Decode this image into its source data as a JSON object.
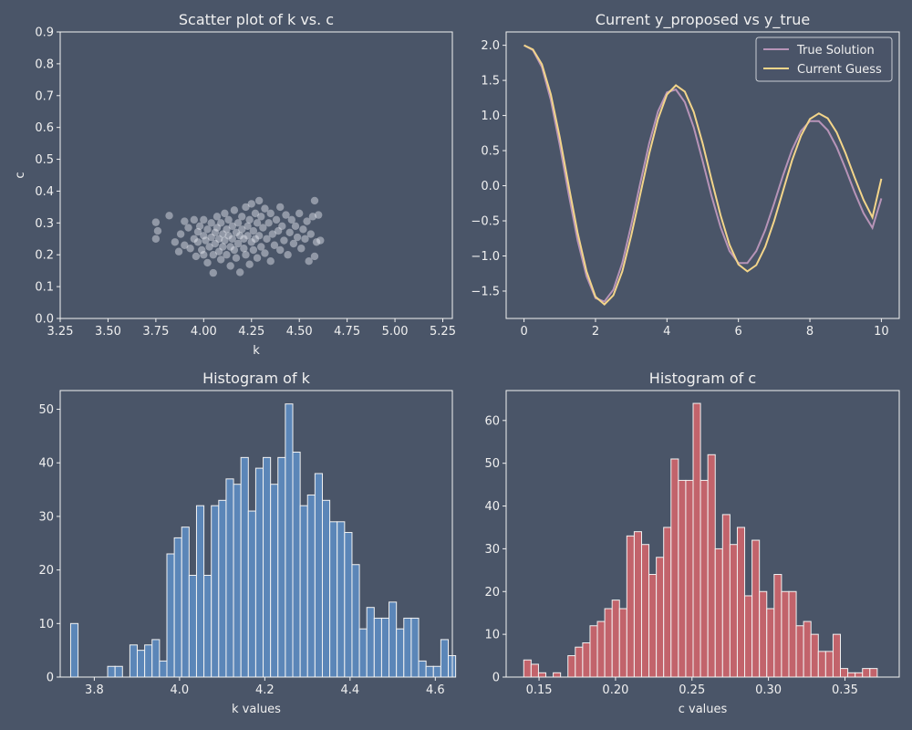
{
  "theme": {
    "background": "#4a5568",
    "text": "#f0f0f0",
    "scatter_color": "#e8ecf2",
    "line_true": "#b794b8",
    "line_guess": "#f3d58a",
    "hist_k": "#5b86b8",
    "hist_c": "#c2636b",
    "edge": "#f2f2f2"
  },
  "chart_data": [
    {
      "type": "scatter",
      "title": "Scatter plot of k vs. c",
      "xlabel": "k",
      "ylabel": "c",
      "xlim": [
        3.25,
        5.3
      ],
      "ylim": [
        0.0,
        0.9
      ],
      "xticks": [
        3.25,
        3.5,
        3.75,
        4.0,
        4.25,
        4.5,
        4.75,
        5.0,
        5.25
      ],
      "xtick_labels": [
        "3.25",
        "3.50",
        "3.75",
        "4.00",
        "4.25",
        "4.50",
        "4.75",
        "5.00",
        "5.25"
      ],
      "yticks": [
        0.0,
        0.1,
        0.2,
        0.3,
        0.4,
        0.5,
        0.6,
        0.7,
        0.8,
        0.9
      ],
      "ytick_labels": [
        "0.0",
        "0.1",
        "0.2",
        "0.3",
        "0.4",
        "0.5",
        "0.6",
        "0.7",
        "0.8",
        "0.9"
      ],
      "points": [
        [
          3.75,
          0.25
        ],
        [
          3.75,
          0.302
        ],
        [
          3.76,
          0.275
        ],
        [
          3.82,
          0.323
        ],
        [
          3.85,
          0.24
        ],
        [
          3.87,
          0.21
        ],
        [
          3.88,
          0.265
        ],
        [
          3.9,
          0.305
        ],
        [
          3.9,
          0.23
        ],
        [
          3.92,
          0.285
        ],
        [
          3.93,
          0.22
        ],
        [
          3.95,
          0.25
        ],
        [
          3.95,
          0.31
        ],
        [
          3.96,
          0.195
        ],
        [
          3.97,
          0.272
        ],
        [
          3.97,
          0.24
        ],
        [
          3.98,
          0.29
        ],
        [
          3.99,
          0.215
        ],
        [
          4.0,
          0.26
        ],
        [
          4.0,
          0.31
        ],
        [
          4.0,
          0.2
        ],
        [
          4.01,
          0.245
        ],
        [
          4.02,
          0.28
        ],
        [
          4.02,
          0.175
        ],
        [
          4.03,
          0.225
        ],
        [
          4.04,
          0.3
        ],
        [
          4.04,
          0.255
        ],
        [
          4.05,
          0.143
        ],
        [
          4.05,
          0.2
        ],
        [
          4.06,
          0.27
        ],
        [
          4.06,
          0.235
        ],
        [
          4.07,
          0.32
        ],
        [
          4.07,
          0.285
        ],
        [
          4.08,
          0.21
        ],
        [
          4.08,
          0.25
        ],
        [
          4.09,
          0.3
        ],
        [
          4.09,
          0.185
        ],
        [
          4.1,
          0.265
        ],
        [
          4.1,
          0.225
        ],
        [
          4.11,
          0.33
        ],
        [
          4.11,
          0.245
        ],
        [
          4.12,
          0.28
        ],
        [
          4.12,
          0.2
        ],
        [
          4.13,
          0.26
        ],
        [
          4.13,
          0.31
        ],
        [
          4.14,
          0.225
        ],
        [
          4.14,
          0.165
        ],
        [
          4.15,
          0.29
        ],
        [
          4.15,
          0.25
        ],
        [
          4.16,
          0.215
        ],
        [
          4.16,
          0.34
        ],
        [
          4.17,
          0.27
        ],
        [
          4.17,
          0.19
        ],
        [
          4.18,
          0.3
        ],
        [
          4.18,
          0.235
        ],
        [
          4.19,
          0.26
        ],
        [
          4.19,
          0.145
        ],
        [
          4.2,
          0.32
        ],
        [
          4.2,
          0.28
        ],
        [
          4.21,
          0.22
        ],
        [
          4.21,
          0.25
        ],
        [
          4.22,
          0.35
        ],
        [
          4.22,
          0.2
        ],
        [
          4.23,
          0.29
        ],
        [
          4.23,
          0.26
        ],
        [
          4.24,
          0.17
        ],
        [
          4.24,
          0.31
        ],
        [
          4.25,
          0.24
        ],
        [
          4.25,
          0.36
        ],
        [
          4.26,
          0.275
        ],
        [
          4.26,
          0.215
        ],
        [
          4.27,
          0.33
        ],
        [
          4.27,
          0.25
        ],
        [
          4.28,
          0.3
        ],
        [
          4.28,
          0.19
        ],
        [
          4.29,
          0.37
        ],
        [
          4.29,
          0.26
        ],
        [
          4.3,
          0.225
        ],
        [
          4.3,
          0.32
        ],
        [
          4.31,
          0.285
        ],
        [
          4.32,
          0.205
        ],
        [
          4.32,
          0.345
        ],
        [
          4.33,
          0.25
        ],
        [
          4.34,
          0.3
        ],
        [
          4.35,
          0.18
        ],
        [
          4.35,
          0.33
        ],
        [
          4.36,
          0.265
        ],
        [
          4.37,
          0.23
        ],
        [
          4.38,
          0.31
        ],
        [
          4.39,
          0.275
        ],
        [
          4.4,
          0.215
        ],
        [
          4.4,
          0.35
        ],
        [
          4.41,
          0.29
        ],
        [
          4.42,
          0.245
        ],
        [
          4.43,
          0.325
        ],
        [
          4.44,
          0.2
        ],
        [
          4.45,
          0.27
        ],
        [
          4.46,
          0.31
        ],
        [
          4.47,
          0.235
        ],
        [
          4.48,
          0.29
        ],
        [
          4.49,
          0.255
        ],
        [
          4.5,
          0.33
        ],
        [
          4.51,
          0.22
        ],
        [
          4.52,
          0.28
        ],
        [
          4.53,
          0.25
        ],
        [
          4.54,
          0.305
        ],
        [
          4.55,
          0.18
        ],
        [
          4.56,
          0.265
        ],
        [
          4.57,
          0.32
        ],
        [
          4.58,
          0.195
        ],
        [
          4.58,
          0.37
        ],
        [
          4.59,
          0.24
        ],
        [
          4.6,
          0.325
        ],
        [
          4.61,
          0.245
        ]
      ]
    },
    {
      "type": "line",
      "title": "Current y_proposed vs y_true",
      "xlim": [
        -0.5,
        10.5
      ],
      "ylim": [
        -1.89,
        2.19
      ],
      "xticks": [
        0,
        2,
        4,
        6,
        8,
        10
      ],
      "xtick_labels": [
        "0",
        "2",
        "4",
        "6",
        "8",
        "10"
      ],
      "yticks": [
        -1.5,
        -1.0,
        -0.5,
        0.0,
        0.5,
        1.0,
        1.5,
        2.0
      ],
      "ytick_labels": [
        "−1.5",
        "−1.0",
        "−0.5",
        "0.0",
        "0.5",
        "1.0",
        "1.5",
        "2.0"
      ],
      "legend_position": "top-right",
      "series": [
        {
          "name": "True Solution",
          "x": [
            0,
            0.25,
            0.5,
            0.75,
            1.0,
            1.25,
            1.5,
            1.75,
            2.0,
            2.25,
            2.5,
            2.75,
            3.0,
            3.25,
            3.5,
            3.75,
            4.0,
            4.25,
            4.5,
            4.75,
            5.0,
            5.25,
            5.5,
            5.75,
            6.0,
            6.25,
            6.5,
            6.75,
            7.0,
            7.25,
            7.5,
            7.75,
            8.0,
            8.25,
            8.5,
            8.75,
            9.0,
            9.25,
            9.5,
            9.75,
            10.0
          ],
          "y": [
            2.0,
            1.93,
            1.69,
            1.22,
            0.58,
            -0.12,
            -0.78,
            -1.29,
            -1.6,
            -1.65,
            -1.48,
            -1.1,
            -0.56,
            0.03,
            0.6,
            1.06,
            1.33,
            1.37,
            1.19,
            0.83,
            0.35,
            -0.15,
            -0.59,
            -0.93,
            -1.1,
            -1.1,
            -0.93,
            -0.63,
            -0.25,
            0.15,
            0.51,
            0.78,
            0.92,
            0.92,
            0.79,
            0.55,
            0.24,
            -0.09,
            -0.39,
            -0.6,
            -0.18
          ]
        },
        {
          "name": "Current Guess",
          "x": [
            0,
            0.25,
            0.5,
            0.75,
            1.0,
            1.25,
            1.5,
            1.75,
            2.0,
            2.25,
            2.5,
            2.75,
            3.0,
            3.25,
            3.5,
            3.75,
            4.0,
            4.25,
            4.5,
            4.75,
            5.0,
            5.25,
            5.5,
            5.75,
            6.0,
            6.25,
            6.5,
            6.75,
            7.0,
            7.25,
            7.5,
            7.75,
            8.0,
            8.25,
            8.5,
            8.75,
            9.0,
            9.25,
            9.5,
            9.75,
            10.0
          ],
          "y": [
            2.0,
            1.94,
            1.73,
            1.3,
            0.69,
            0.0,
            -0.67,
            -1.22,
            -1.58,
            -1.69,
            -1.56,
            -1.22,
            -0.71,
            -0.13,
            0.45,
            0.95,
            1.3,
            1.43,
            1.34,
            1.05,
            0.6,
            0.08,
            -0.42,
            -0.84,
            -1.12,
            -1.22,
            -1.13,
            -0.87,
            -0.5,
            -0.07,
            0.36,
            0.71,
            0.95,
            1.03,
            0.96,
            0.76,
            0.46,
            0.12,
            -0.2,
            -0.45,
            0.1
          ]
        }
      ]
    },
    {
      "type": "bar",
      "title": "Histogram of k",
      "xlabel": "k values",
      "xlim": [
        3.72,
        4.64
      ],
      "ylim": [
        0,
        53.5
      ],
      "xticks": [
        3.8,
        4.0,
        4.2,
        4.4,
        4.6
      ],
      "xtick_labels": [
        "3.8",
        "4.0",
        "4.2",
        "4.4",
        "4.6"
      ],
      "yticks": [
        0,
        10,
        20,
        30,
        40,
        50
      ],
      "ytick_labels": [
        "0",
        "10",
        "20",
        "30",
        "40",
        "50"
      ],
      "bin_start": 3.7445,
      "bin_width": 0.01737,
      "counts": [
        10,
        0,
        0,
        0,
        0,
        2,
        2,
        0,
        6,
        5,
        6,
        7,
        3,
        23,
        26,
        28,
        19,
        32,
        19,
        32,
        33,
        37,
        36,
        41,
        31,
        39,
        41,
        36,
        41,
        51,
        42,
        32,
        34,
        38,
        33,
        29,
        29,
        27,
        21,
        9,
        13,
        11,
        11,
        14,
        9,
        11,
        11,
        3,
        2,
        2,
        7,
        4
      ]
    },
    {
      "type": "bar",
      "title": "Histogram of c",
      "xlabel": "c values",
      "xlim": [
        0.1285,
        0.3855
      ],
      "ylim": [
        0,
        67
      ],
      "xticks": [
        0.15,
        0.2,
        0.25,
        0.3,
        0.35
      ],
      "xtick_labels": [
        "0.15",
        "0.20",
        "0.25",
        "0.30",
        "0.35"
      ],
      "yticks": [
        0,
        10,
        20,
        30,
        40,
        50,
        60
      ],
      "ytick_labels": [
        "0",
        "10",
        "20",
        "30",
        "40",
        "50",
        "60"
      ],
      "bin_start": 0.14,
      "bin_width": 0.004815,
      "counts": [
        4,
        3,
        1,
        0,
        1,
        0,
        5,
        7,
        8,
        12,
        13,
        16,
        18,
        16,
        33,
        34,
        31,
        24,
        28,
        35,
        51,
        46,
        46,
        64,
        46,
        52,
        30,
        38,
        31,
        35,
        19,
        32,
        20,
        16,
        24,
        20,
        20,
        12,
        13,
        10,
        6,
        6,
        10,
        2,
        1,
        1,
        2,
        2
      ]
    }
  ]
}
